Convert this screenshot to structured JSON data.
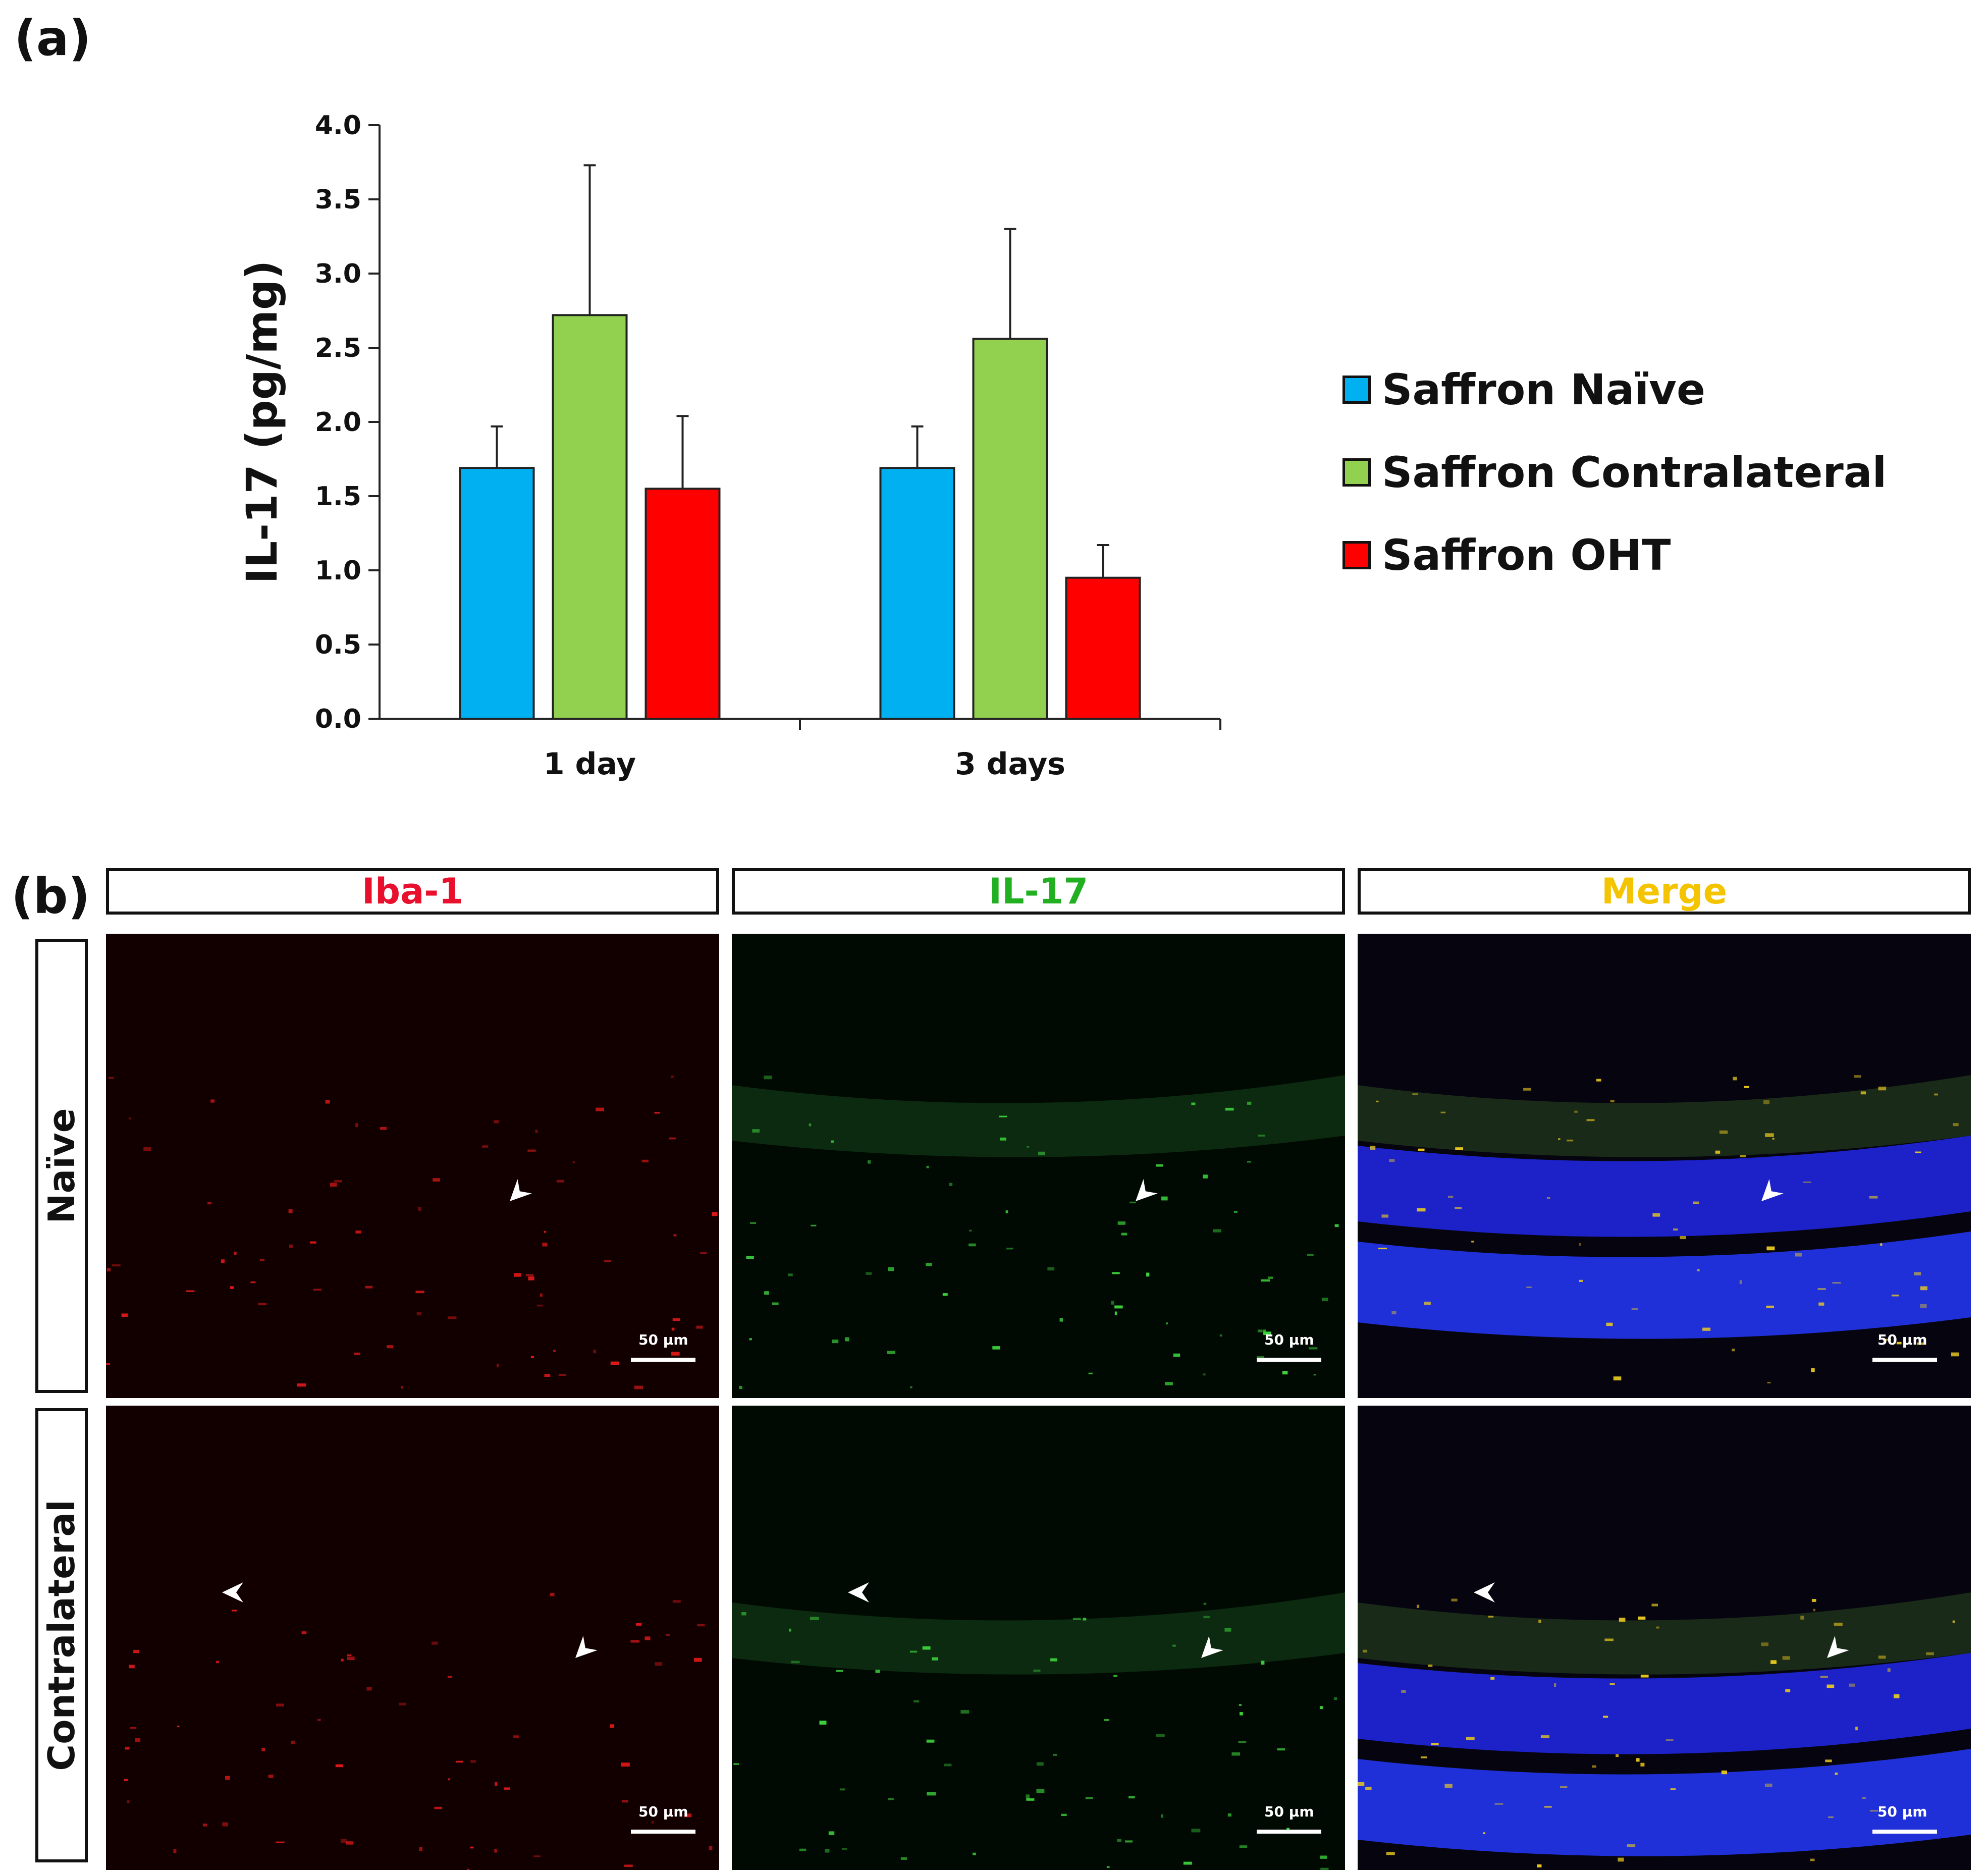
{
  "panel_a_label": "(a)",
  "panel_b_label": "(b)",
  "chart_data": {
    "type": "bar",
    "title": "",
    "xlabel": "",
    "ylabel": "IL-17 (pg/mg)",
    "ylim": [
      0,
      4.0
    ],
    "yticks": [
      "0.0",
      "0.5",
      "1.0",
      "1.5",
      "2.0",
      "2.5",
      "3.0",
      "3.5",
      "4.0"
    ],
    "categories": [
      "1 day",
      "3 days"
    ],
    "grid": false,
    "legend_position": "right",
    "series": [
      {
        "name": "Saffron Naïve",
        "color": "#00b0f0",
        "values": [
          1.69,
          1.69
        ],
        "errors": [
          0.28,
          0.28
        ]
      },
      {
        "name": "Saffron Contralateral",
        "color": "#92d050",
        "values": [
          2.72,
          2.56
        ],
        "errors": [
          1.01,
          0.74
        ]
      },
      {
        "name": "Saffron OHT",
        "color": "#ff0000",
        "values": [
          1.55,
          0.95
        ],
        "errors": [
          0.49,
          0.22
        ]
      }
    ]
  },
  "micrographs": {
    "columns": [
      {
        "label": "Iba-1",
        "color": "#e8102c"
      },
      {
        "label": "IL-17",
        "color": "#22b022"
      },
      {
        "label": "Merge",
        "color": "#f5c400"
      }
    ],
    "rows": [
      "Naïve",
      "Contralateral"
    ],
    "scale_bar_label": "50 µm"
  }
}
